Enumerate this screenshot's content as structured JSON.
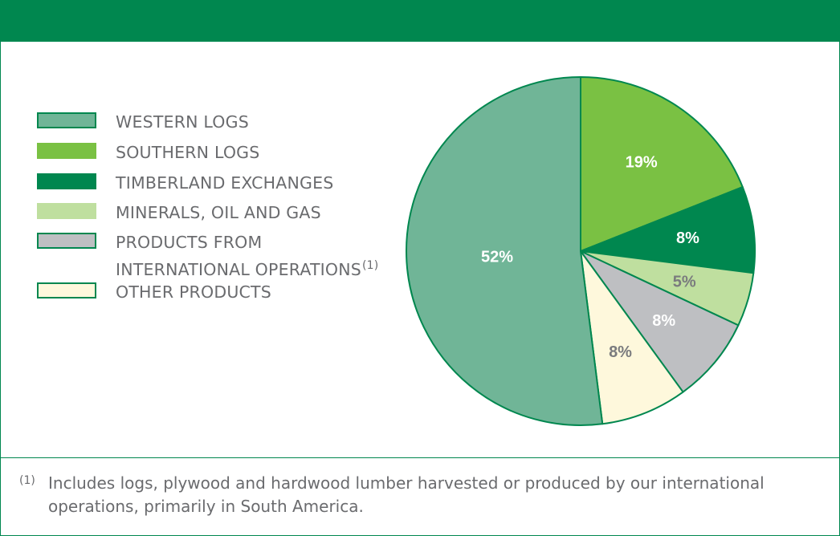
{
  "chart_data": {
    "type": "pie",
    "slices": [
      {
        "label": "SOUTHERN LOGS",
        "value": 19,
        "value_label": "19%",
        "color": "#7ac143",
        "text_color": "#ffffff"
      },
      {
        "label": "TIMBERLAND EXCHANGES",
        "value": 8,
        "value_label": "8%",
        "color": "#00874f",
        "text_color": "#ffffff"
      },
      {
        "label": "MINERALS, OIL AND GAS",
        "value": 5,
        "value_label": "5%",
        "color": "#bfdf9f",
        "text_color": "#7a7b7e"
      },
      {
        "label": "PRODUCTS FROM INTERNATIONAL OPERATIONS",
        "value": 8,
        "value_label": "8%",
        "color": "#bebfc2",
        "text_color": "#ffffff"
      },
      {
        "label": "OTHER PRODUCTS",
        "value": 8,
        "value_label": "8%",
        "color": "#fef8dc",
        "text_color": "#7a7b7e"
      },
      {
        "label": "WESTERN LOGS",
        "value": 52,
        "value_label": "52%",
        "color": "#70b597",
        "text_color": "#ffffff"
      }
    ],
    "start_angle_deg": 0,
    "direction": "clockwise",
    "edge_color": "#00874f"
  },
  "legend": {
    "items": [
      {
        "label": "WESTERN LOGS",
        "color": "#70b597"
      },
      {
        "label": "SOUTHERN LOGS",
        "color": "#7ac143"
      },
      {
        "label": "TIMBERLAND EXCHANGES",
        "color": "#00874f"
      },
      {
        "label": "MINERALS, OIL AND GAS",
        "color": "#bfdf9f"
      },
      {
        "label_line1": "PRODUCTS FROM",
        "label_line2": "INTERNATIONAL OPERATIONS",
        "footnote_ref": "(1)",
        "color": "#bebfc2"
      },
      {
        "label": "OTHER PRODUCTS",
        "color": "#fef8dc"
      }
    ]
  },
  "footnote": {
    "marker": "(1)",
    "text": "Includes logs, plywood and hardwood lumber harvested or produced by our international operations, primarily in South America."
  },
  "colors": {
    "brand_green": "#00874f",
    "label_gray": "#6a6b6e"
  }
}
